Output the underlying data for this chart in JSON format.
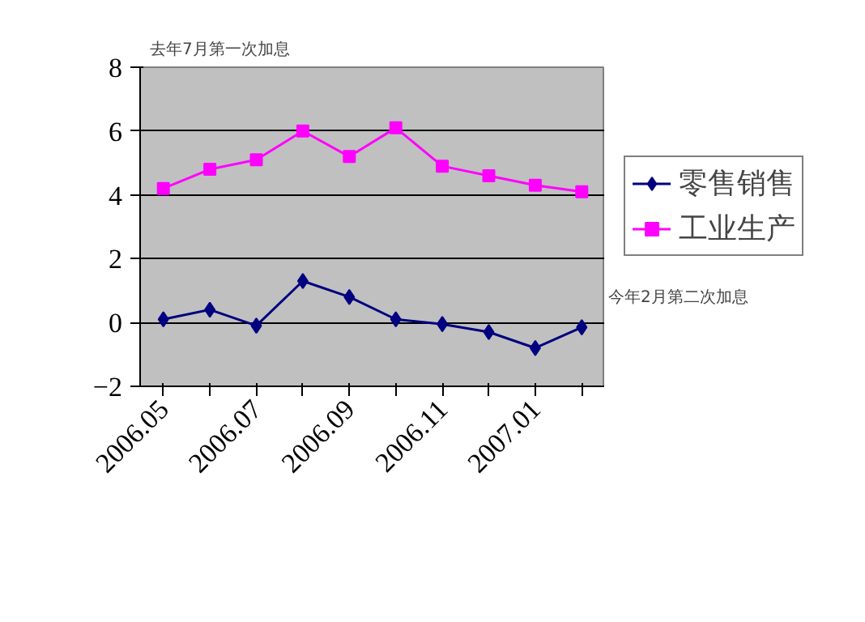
{
  "chart_data": {
    "type": "line",
    "categories": [
      "2006.05",
      null,
      "2006.07",
      null,
      "2006.09",
      null,
      "2006.11",
      null,
      "2007.01",
      null
    ],
    "series": [
      {
        "name": "零售销售",
        "color": "#000080",
        "marker": "diamond",
        "values": [
          0.1,
          0.4,
          -0.1,
          1.3,
          0.8,
          0.1,
          -0.05,
          -0.3,
          -0.8,
          -0.15
        ]
      },
      {
        "name": "工业生产",
        "color": "#ff00ff",
        "marker": "square",
        "values": [
          4.2,
          4.8,
          5.1,
          6.0,
          5.2,
          6.1,
          4.9,
          4.6,
          4.3,
          4.1
        ]
      }
    ],
    "ylim": [
      -2,
      8
    ],
    "yticks": [
      {
        "value": -2,
        "label": "−2"
      },
      0,
      2,
      4,
      6,
      8
    ],
    "grid": "y",
    "legend": "right",
    "annotations": [
      "去年7月第一次加息",
      "今年2月第二次加息"
    ]
  }
}
